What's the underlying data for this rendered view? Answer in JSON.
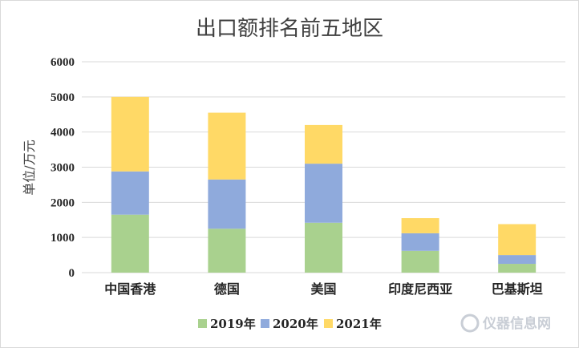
{
  "chart_data": {
    "type": "bar",
    "stacked": true,
    "title": "出口额排名前五地区",
    "xlabel": "",
    "ylabel": "单位/万元",
    "ylim": [
      0,
      6000
    ],
    "yticks": [
      "0",
      "1000",
      "2000",
      "3000",
      "4000",
      "5000",
      "6000"
    ],
    "categories": [
      "中国香港",
      "德国",
      "美国",
      "印度尼西亚",
      "巴基斯坦"
    ],
    "series": [
      {
        "name": "2019年",
        "color": "#a9d18e",
        "values": [
          1650,
          1250,
          1420,
          620,
          250
        ]
      },
      {
        "name": "2020年",
        "color": "#8faadc",
        "values": [
          1230,
          1400,
          1680,
          500,
          250
        ]
      },
      {
        "name": "2021年",
        "color": "#ffd966",
        "values": [
          2120,
          1900,
          1100,
          430,
          880
        ]
      }
    ],
    "grid": true,
    "legend": "bottom"
  },
  "watermark": {
    "text": "仪器信息网",
    "icon": "instrument-logo-icon"
  }
}
